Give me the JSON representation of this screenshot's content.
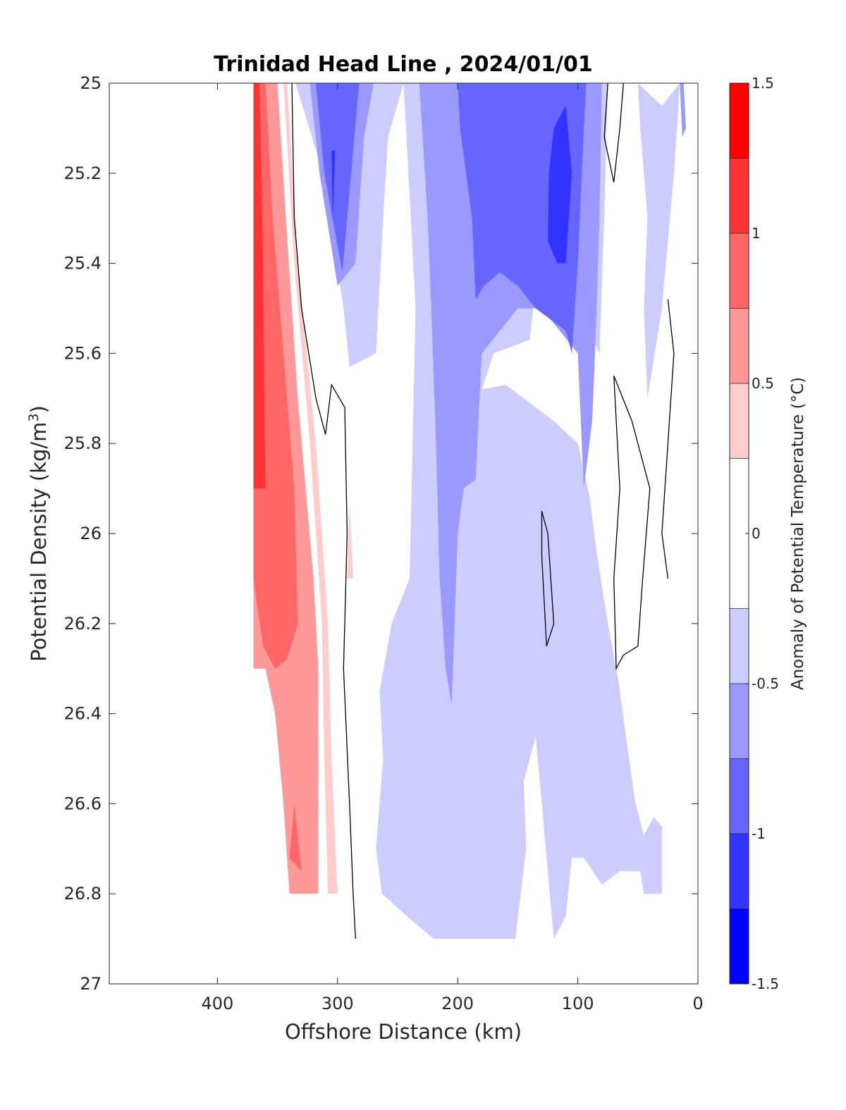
{
  "chart_data": {
    "type": "heatmap",
    "subtype": "filled-contour",
    "title": "Trinidad Head Line , 2024/01/01",
    "xlabel": "Offshore Distance (km)",
    "ylabel": "Potential Density (kg/m",
    "ylabel_superscript": "3",
    "ylabel_close": ")",
    "x_axis": {
      "range": [
        490,
        0
      ],
      "reversed": true,
      "ticks": [
        400,
        300,
        200,
        100,
        0
      ]
    },
    "y_axis": {
      "range": [
        25,
        27
      ],
      "reversed": true,
      "ticks": [
        25,
        25.2,
        25.4,
        25.6,
        25.8,
        26,
        26.2,
        26.4,
        26.6,
        26.8,
        27
      ]
    },
    "tick_labels_y": [
      "25",
      "25.2",
      "25.4",
      "25.6",
      "25.8",
      "26",
      "26.2",
      "26.4",
      "26.6",
      "26.8",
      "27"
    ],
    "tick_labels_x": [
      "400",
      "300",
      "200",
      "100",
      "0"
    ],
    "colorbar": {
      "label": "Anomaly of Potential Temperature (°C)",
      "range": [
        -1.5,
        1.5
      ],
      "tick_values": [
        1.5,
        1,
        0.5,
        0,
        -0.5,
        -1,
        -1.5
      ],
      "tick_labels": [
        "1.5",
        "1",
        "0.5",
        "0",
        "-0.5",
        "-1",
        "-1.5"
      ],
      "levels": [
        {
          "range": [
            1.25,
            1.5
          ],
          "color": "#ff0000"
        },
        {
          "range": [
            1.0,
            1.25
          ],
          "color": "#ff3333"
        },
        {
          "range": [
            0.75,
            1.0
          ],
          "color": "#ff6666"
        },
        {
          "range": [
            0.5,
            0.75
          ],
          "color": "#ff9999"
        },
        {
          "range": [
            0.25,
            0.5
          ],
          "color": "#ffcccc"
        },
        {
          "range": [
            -0.25,
            0.25
          ],
          "color": "#ffffff"
        },
        {
          "range": [
            -0.5,
            -0.25
          ],
          "color": "#ccccff"
        },
        {
          "range": [
            -0.75,
            -0.5
          ],
          "color": "#9999ff"
        },
        {
          "range": [
            -1.0,
            -0.75
          ],
          "color": "#6666ff"
        },
        {
          "range": [
            -1.25,
            -1.0
          ],
          "color": "#3333ff"
        },
        {
          "range": [
            -1.5,
            -1.25
          ],
          "color": "#0000ff"
        }
      ]
    },
    "regions": [
      {
        "name": "warm-band-light",
        "anomaly_level": 0.25,
        "color": "#ffcccc",
        "points": [
          [
            369,
            25
          ],
          [
            342,
            25
          ],
          [
            333,
            25.4
          ],
          [
            318,
            25.8
          ],
          [
            308,
            26.2
          ],
          [
            305,
            26.5
          ],
          [
            300,
            26.8
          ],
          [
            308,
            26.8
          ],
          [
            311,
            26.5
          ],
          [
            313,
            26.2
          ],
          [
            323,
            25.8
          ],
          [
            336,
            25.4
          ],
          [
            345,
            25
          ]
        ]
      },
      {
        "name": "warm-band-mid",
        "anomaly_level": 0.5,
        "color": "#ff9999",
        "points": [
          [
            370,
            25
          ],
          [
            350,
            25
          ],
          [
            343,
            25.3
          ],
          [
            333,
            25.7
          ],
          [
            320,
            26.1
          ],
          [
            316,
            26.3
          ],
          [
            316,
            26.8
          ],
          [
            340,
            26.8
          ],
          [
            345,
            26.6
          ],
          [
            352,
            26.4
          ],
          [
            360,
            26.3
          ],
          [
            370,
            26.3
          ]
        ]
      },
      {
        "name": "warm-band-strong",
        "anomaly_level": 0.75,
        "color": "#ff6666",
        "points": [
          [
            370,
            25
          ],
          [
            360,
            25
          ],
          [
            354,
            25.3
          ],
          [
            345,
            25.6
          ],
          [
            336,
            25.9
          ],
          [
            333,
            26.2
          ],
          [
            342,
            26.28
          ],
          [
            352,
            26.3
          ],
          [
            362,
            26.25
          ],
          [
            370,
            26.1
          ]
        ]
      },
      {
        "name": "warm-core",
        "anomaly_level": 1.0,
        "color": "#ff3333",
        "points": [
          [
            370,
            25
          ],
          [
            365,
            25
          ],
          [
            362,
            25.4
          ],
          [
            360,
            25.9
          ],
          [
            370,
            25.9
          ]
        ]
      },
      {
        "name": "warm-patch-deep",
        "anomaly_level": 0.75,
        "color": "#ff6666",
        "points": [
          [
            336,
            26.6
          ],
          [
            330,
            26.75
          ],
          [
            340,
            26.72
          ]
        ]
      },
      {
        "name": "warm-sliver",
        "anomaly_level": 0.25,
        "color": "#ffcccc",
        "points": [
          [
            290,
            25.93
          ],
          [
            287,
            26.1
          ],
          [
            292,
            26.1
          ]
        ]
      },
      {
        "name": "cool-west",
        "anomaly_level": -0.25,
        "color": "#ccccff",
        "points": [
          [
            335,
            25
          ],
          [
            312,
            25.2
          ],
          [
            295,
            25.5
          ],
          [
            290,
            25.63
          ],
          [
            268,
            25.6
          ],
          [
            262,
            25.3
          ],
          [
            258,
            25.12
          ],
          [
            245,
            25
          ]
        ]
      },
      {
        "name": "cool-west-mid",
        "anomaly_level": -0.5,
        "color": "#9999ff",
        "points": [
          [
            323,
            25
          ],
          [
            315,
            25.2
          ],
          [
            300,
            25.45
          ],
          [
            285,
            25.4
          ],
          [
            278,
            25.12
          ],
          [
            270,
            25
          ]
        ]
      },
      {
        "name": "cool-west-core",
        "anomaly_level": -0.75,
        "color": "#6666ff",
        "points": [
          [
            318,
            25
          ],
          [
            311,
            25.2
          ],
          [
            296,
            25.42
          ],
          [
            292,
            25.3
          ],
          [
            286,
            25.12
          ],
          [
            282,
            25
          ]
        ]
      },
      {
        "name": "cool-west-dark",
        "anomaly_level": -1.0,
        "color": "#3333ff",
        "points": [
          [
            305,
            25.15
          ],
          [
            304,
            25.3
          ],
          [
            302,
            25.15
          ]
        ]
      },
      {
        "name": "cool-main",
        "anomaly_level": -0.25,
        "color": "#ccccff",
        "points": [
          [
            245,
            25
          ],
          [
            235,
            25.5
          ],
          [
            240,
            26.1
          ],
          [
            255,
            26.2
          ],
          [
            265,
            26.35
          ],
          [
            262,
            26.5
          ],
          [
            268,
            26.7
          ],
          [
            263,
            26.8
          ],
          [
            242,
            26.85
          ],
          [
            220,
            26.9
          ],
          [
            152,
            26.9
          ],
          [
            143,
            26.7
          ],
          [
            145,
            26.55
          ],
          [
            135,
            26.45
          ],
          [
            130,
            26.6
          ],
          [
            120,
            26.9
          ],
          [
            110,
            26.85
          ],
          [
            105,
            26.72
          ],
          [
            95,
            26.72
          ],
          [
            80,
            26.78
          ],
          [
            65,
            26.75
          ],
          [
            55,
            26.75
          ],
          [
            48,
            26.75
          ],
          [
            45,
            26.8
          ],
          [
            30,
            26.8
          ],
          [
            30,
            26.65
          ],
          [
            37,
            26.63
          ],
          [
            45,
            26.67
          ],
          [
            52,
            26.6
          ],
          [
            60,
            26.45
          ],
          [
            66,
            26.33
          ],
          [
            75,
            26.2
          ],
          [
            85,
            26.03
          ],
          [
            90,
            25.92
          ],
          [
            100,
            25.8
          ],
          [
            120,
            25.75
          ],
          [
            160,
            25.67
          ],
          [
            180,
            25.68
          ],
          [
            170,
            25.6
          ],
          [
            140,
            25.57
          ],
          [
            135,
            25.45
          ],
          [
            125,
            25.35
          ],
          [
            82,
            25.6
          ],
          [
            78,
            25.3
          ],
          [
            75,
            25
          ],
          [
            225,
            25
          ]
        ]
      },
      {
        "name": "cool-east-strip",
        "anomaly_level": -0.25,
        "color": "#ccccff",
        "points": [
          [
            50,
            25
          ],
          [
            48,
            25.1
          ],
          [
            42,
            25.3
          ],
          [
            45,
            25.5
          ],
          [
            42,
            25.7
          ],
          [
            30,
            25.5
          ],
          [
            20,
            25.2
          ],
          [
            15,
            25
          ],
          [
            30,
            25.05
          ]
        ]
      },
      {
        "name": "cool-mid-a",
        "anomaly_level": -0.5,
        "color": "#9999ff",
        "points": [
          [
            232,
            25
          ],
          [
            225,
            25.3
          ],
          [
            222,
            25.5
          ],
          [
            218,
            25.8
          ],
          [
            215,
            26.1
          ],
          [
            210,
            26.3
          ],
          [
            205,
            26.38
          ],
          [
            200,
            26.0
          ],
          [
            195,
            25.9
          ],
          [
            185,
            25.88
          ],
          [
            180,
            25.6
          ],
          [
            165,
            25.55
          ],
          [
            150,
            25.5
          ],
          [
            130,
            25.5
          ],
          [
            100,
            25.6
          ],
          [
            95,
            25.9
          ],
          [
            88,
            25.75
          ],
          [
            85,
            25.55
          ],
          [
            82,
            25.3
          ],
          [
            80,
            25
          ],
          [
            200,
            25
          ]
        ]
      },
      {
        "name": "cool-mid-b",
        "anomaly_level": -0.75,
        "color": "#6666ff",
        "points": [
          [
            200,
            25
          ],
          [
            198,
            25.1
          ],
          [
            188,
            25.3
          ],
          [
            185,
            25.48
          ],
          [
            178,
            25.45
          ],
          [
            165,
            25.42
          ],
          [
            150,
            25.45
          ],
          [
            135,
            25.5
          ],
          [
            110,
            25.55
          ],
          [
            105,
            25.6
          ],
          [
            100,
            25.4
          ],
          [
            95,
            25.1
          ],
          [
            93,
            25
          ],
          [
            150,
            25
          ]
        ]
      },
      {
        "name": "cool-core",
        "anomaly_level": -1.0,
        "color": "#3333ff",
        "points": [
          [
            120,
            25.1
          ],
          [
            110,
            25.05
          ],
          [
            105,
            25.2
          ],
          [
            110,
            25.4
          ],
          [
            117,
            25.4
          ],
          [
            125,
            25.35
          ],
          [
            124,
            25.2
          ]
        ]
      },
      {
        "name": "cool-edge-east",
        "anomaly_level": -0.5,
        "color": "#9999ff",
        "points": [
          [
            15,
            25
          ],
          [
            13,
            25.12
          ],
          [
            10,
            25.1
          ],
          [
            12,
            25
          ]
        ]
      }
    ],
    "zero_contours": [
      {
        "name": "contour-west",
        "points": [
          [
            338,
            25
          ],
          [
            336,
            25.3
          ],
          [
            330,
            25.5
          ],
          [
            318,
            25.7
          ],
          [
            310,
            25.78
          ],
          [
            305,
            25.67
          ],
          [
            294,
            25.72
          ],
          [
            292,
            26
          ],
          [
            295,
            26.3
          ],
          [
            290,
            26.6
          ],
          [
            287,
            26.8
          ],
          [
            285,
            26.9
          ]
        ]
      },
      {
        "name": "contour-north-east",
        "points": [
          [
            75,
            25
          ],
          [
            78,
            25.12
          ],
          [
            70,
            25.22
          ],
          [
            65,
            25.1
          ],
          [
            62,
            25
          ]
        ]
      },
      {
        "name": "contour-loop-east",
        "points": [
          [
            70,
            25.65
          ],
          [
            65,
            25.9
          ],
          [
            70,
            26.1
          ],
          [
            68,
            26.3
          ],
          [
            62,
            26.27
          ],
          [
            50,
            26.25
          ],
          [
            46,
            26.1
          ],
          [
            40,
            25.9
          ],
          [
            55,
            25.75
          ],
          [
            70,
            25.65
          ]
        ]
      },
      {
        "name": "contour-loop-mid",
        "points": [
          [
            130,
            25.95
          ],
          [
            125,
            26.0
          ],
          [
            120,
            26.2
          ],
          [
            126,
            26.25
          ],
          [
            130,
            26.05
          ],
          [
            130,
            25.95
          ]
        ]
      },
      {
        "name": "contour-east-edge",
        "points": [
          [
            25,
            25.48
          ],
          [
            20,
            25.6
          ],
          [
            25,
            25.8
          ],
          [
            30,
            26.0
          ],
          [
            25,
            26.1
          ]
        ]
      }
    ]
  }
}
